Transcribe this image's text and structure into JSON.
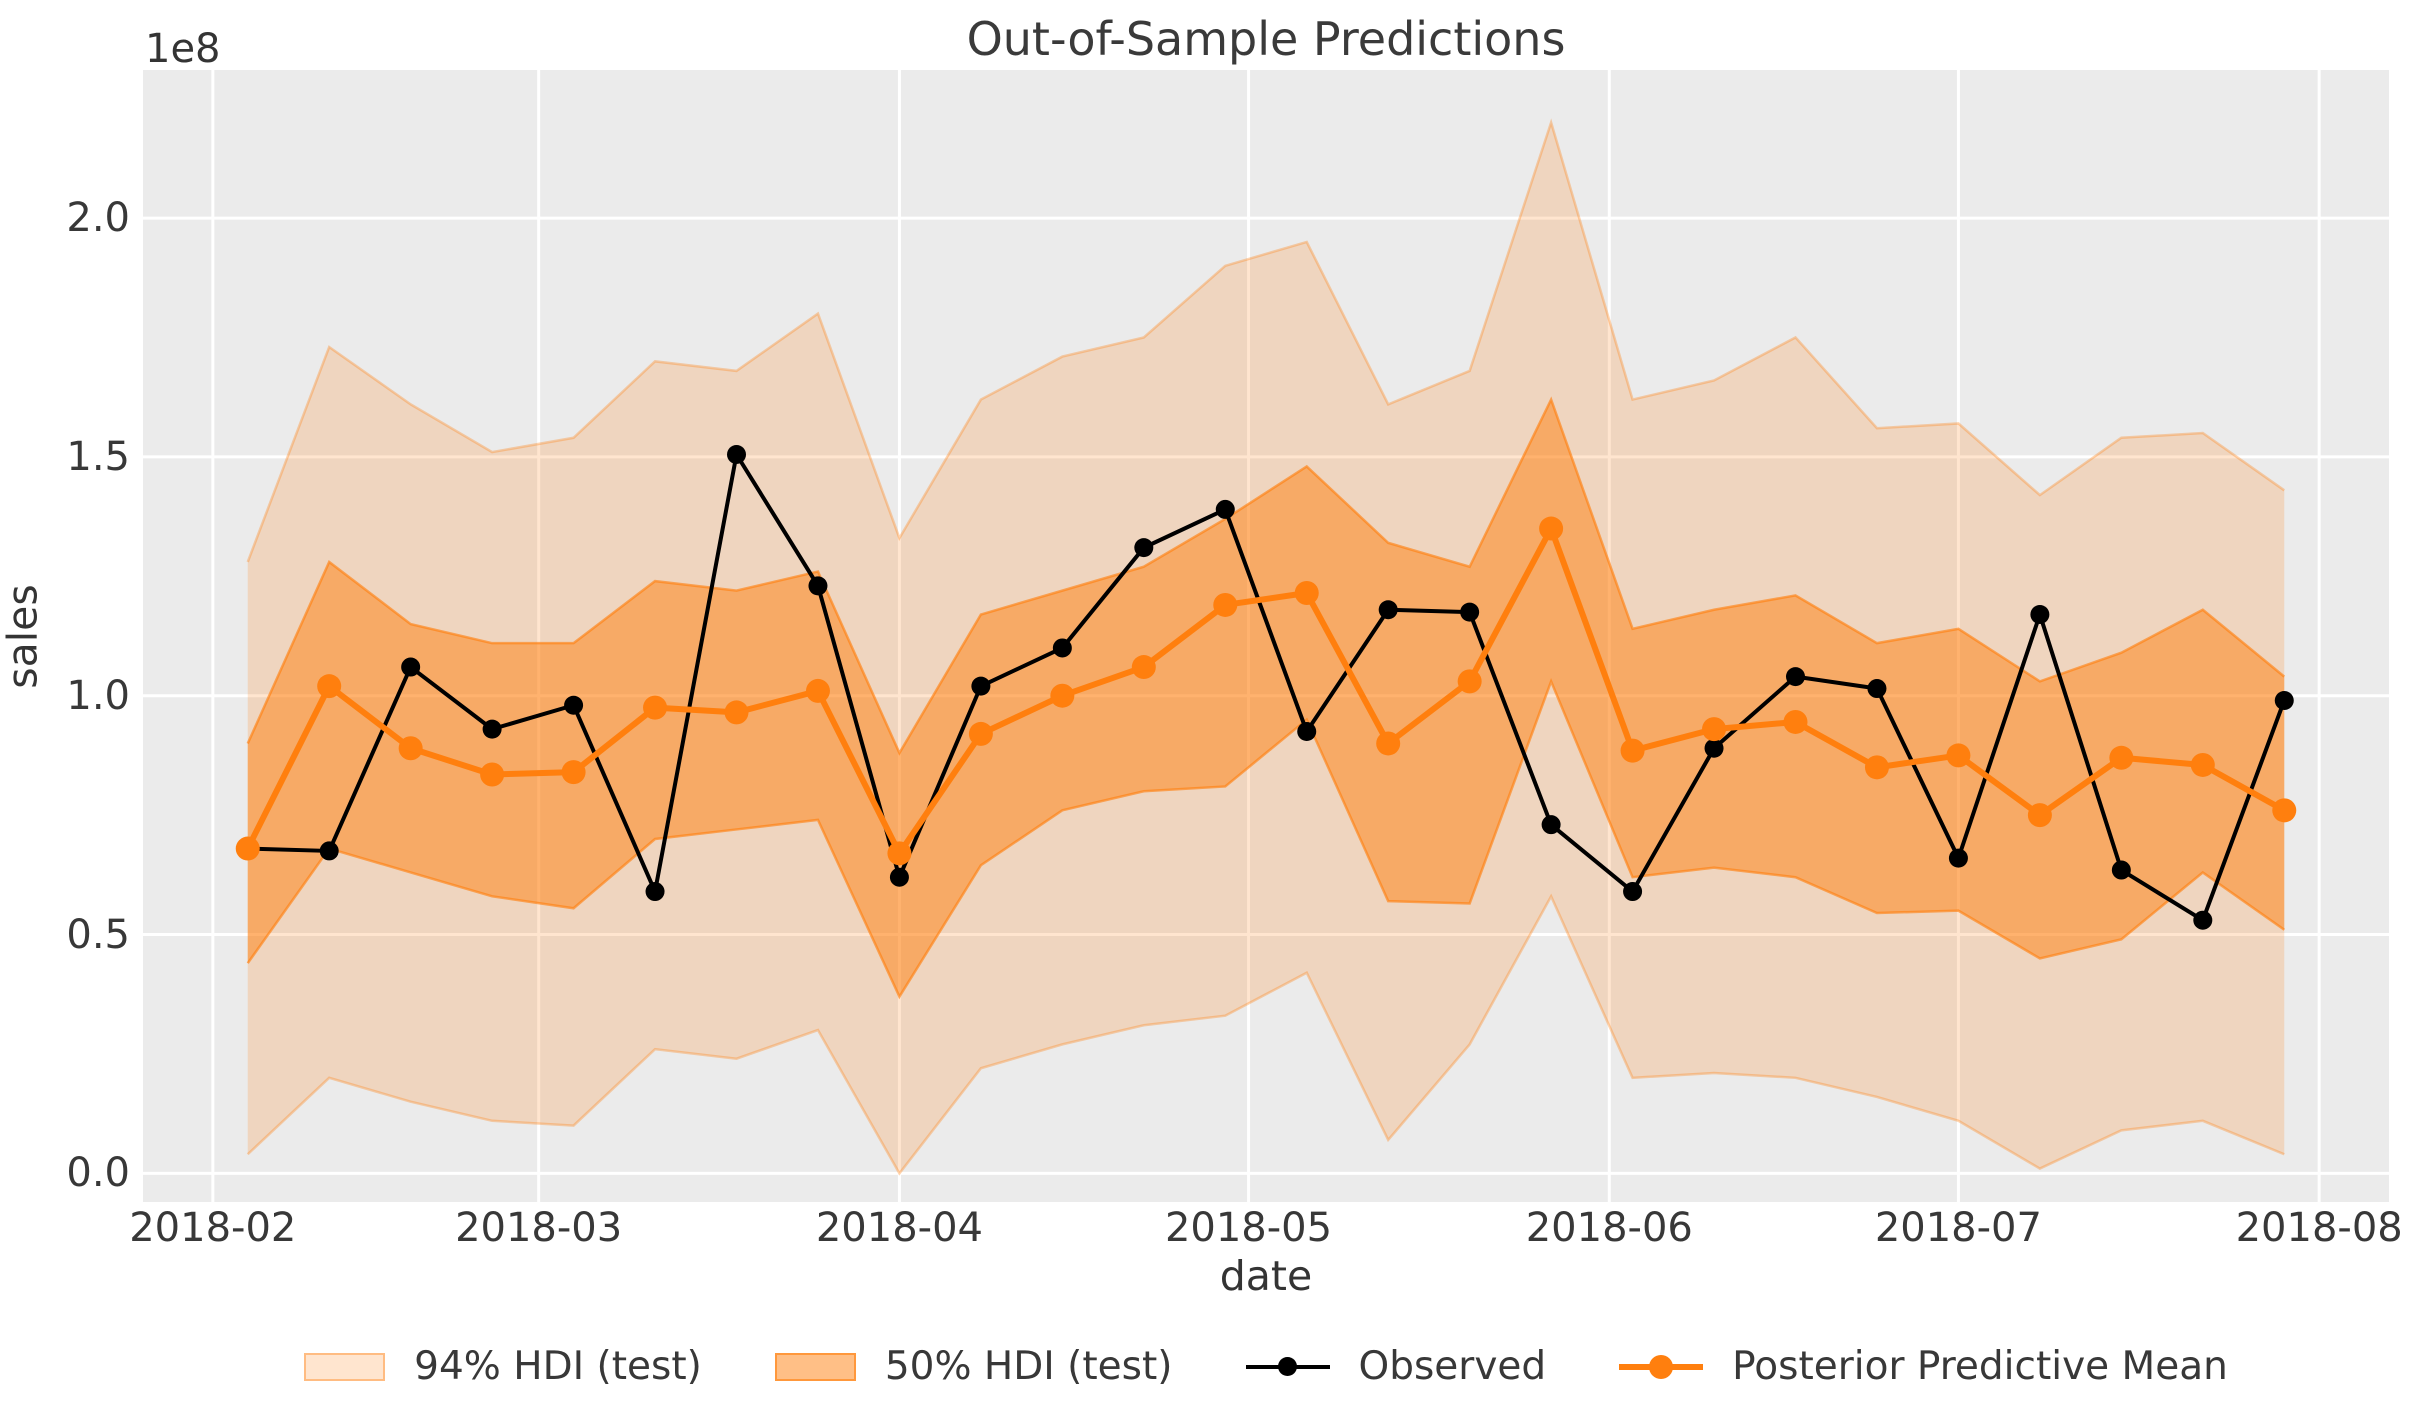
{
  "chart_data": {
    "type": "line",
    "title": "Out-of-Sample Predictions",
    "xlabel": "date",
    "ylabel": "sales",
    "y_offset_label": "1e8",
    "grid": true,
    "legend_position": "bottom",
    "plot_bg": "#ebebeb",
    "grid_color": "#ffffff",
    "accent_orange": "#ff7f0e",
    "observed_color": "#000000",
    "x": [
      "2018-02-04",
      "2018-02-11",
      "2018-02-18",
      "2018-02-25",
      "2018-03-04",
      "2018-03-11",
      "2018-03-18",
      "2018-03-25",
      "2018-04-01",
      "2018-04-08",
      "2018-04-15",
      "2018-04-22",
      "2018-04-29",
      "2018-05-06",
      "2018-05-13",
      "2018-05-20",
      "2018-05-27",
      "2018-06-03",
      "2018-06-10",
      "2018-06-17",
      "2018-06-24",
      "2018-07-01",
      "2018-07-08",
      "2018-07-15",
      "2018-07-22",
      "2018-07-29"
    ],
    "series": [
      {
        "name": "94% HDI (test)",
        "kind": "band",
        "alpha": 0.2,
        "lo": [
          0.04,
          0.2,
          0.15,
          0.11,
          0.1,
          0.26,
          0.24,
          0.3,
          0.0,
          0.22,
          0.27,
          0.31,
          0.33,
          0.42,
          0.07,
          0.27,
          0.58,
          0.2,
          0.21,
          0.2,
          0.16,
          0.11,
          0.01,
          0.09,
          0.11,
          0.04
        ],
        "hi": [
          1.28,
          1.73,
          1.61,
          1.51,
          1.54,
          1.7,
          1.68,
          1.8,
          1.33,
          1.62,
          1.71,
          1.75,
          1.9,
          1.95,
          1.61,
          1.68,
          2.2,
          1.62,
          1.66,
          1.75,
          1.56,
          1.57,
          1.42,
          1.54,
          1.55,
          1.43
        ]
      },
      {
        "name": "50% HDI (test)",
        "kind": "band",
        "alpha": 0.5,
        "lo": [
          0.44,
          0.68,
          0.63,
          0.58,
          0.555,
          0.7,
          0.72,
          0.74,
          0.37,
          0.645,
          0.76,
          0.8,
          0.81,
          0.95,
          0.57,
          0.565,
          1.03,
          0.62,
          0.64,
          0.62,
          0.545,
          0.55,
          0.45,
          0.49,
          0.63,
          0.51
        ],
        "hi": [
          0.9,
          1.28,
          1.15,
          1.11,
          1.11,
          1.24,
          1.22,
          1.26,
          0.88,
          1.17,
          1.22,
          1.27,
          1.37,
          1.48,
          1.32,
          1.27,
          1.62,
          1.14,
          1.18,
          1.21,
          1.11,
          1.14,
          1.03,
          1.09,
          1.18,
          1.04
        ]
      },
      {
        "name": "Observed",
        "kind": "line",
        "color": "#000000",
        "values": [
          0.68,
          0.675,
          1.06,
          0.93,
          0.98,
          0.59,
          1.505,
          1.23,
          0.62,
          1.02,
          1.1,
          1.31,
          1.39,
          0.925,
          1.18,
          1.175,
          0.73,
          0.59,
          0.89,
          1.04,
          1.015,
          0.66,
          1.17,
          0.635,
          0.53,
          0.99
        ]
      },
      {
        "name": "Posterior Predictive Mean",
        "kind": "line",
        "color": "#ff7f0e",
        "values": [
          0.68,
          1.02,
          0.89,
          0.835,
          0.84,
          0.975,
          0.965,
          1.01,
          0.67,
          0.92,
          1.0,
          1.06,
          1.19,
          1.215,
          0.9,
          1.03,
          1.35,
          0.885,
          0.93,
          0.945,
          0.85,
          0.875,
          0.75,
          0.87,
          0.855,
          0.76
        ]
      }
    ],
    "xticks": [
      {
        "label": "2018-02",
        "date": "2018-02-01"
      },
      {
        "label": "2018-03",
        "date": "2018-03-01"
      },
      {
        "label": "2018-04",
        "date": "2018-04-01"
      },
      {
        "label": "2018-05",
        "date": "2018-05-01"
      },
      {
        "label": "2018-06",
        "date": "2018-06-01"
      },
      {
        "label": "2018-07",
        "date": "2018-07-01"
      },
      {
        "label": "2018-08",
        "date": "2018-08-01"
      }
    ],
    "yticks": [
      {
        "label": "0.0",
        "value": 0.0
      },
      {
        "label": "0.5",
        "value": 0.5
      },
      {
        "label": "1.0",
        "value": 1.0
      },
      {
        "label": "1.5",
        "value": 1.5
      },
      {
        "label": "2.0",
        "value": 2.0
      }
    ],
    "ylim": [
      -0.06,
      2.31
    ],
    "xlim": [
      "2018-01-26",
      "2018-08-07"
    ]
  }
}
